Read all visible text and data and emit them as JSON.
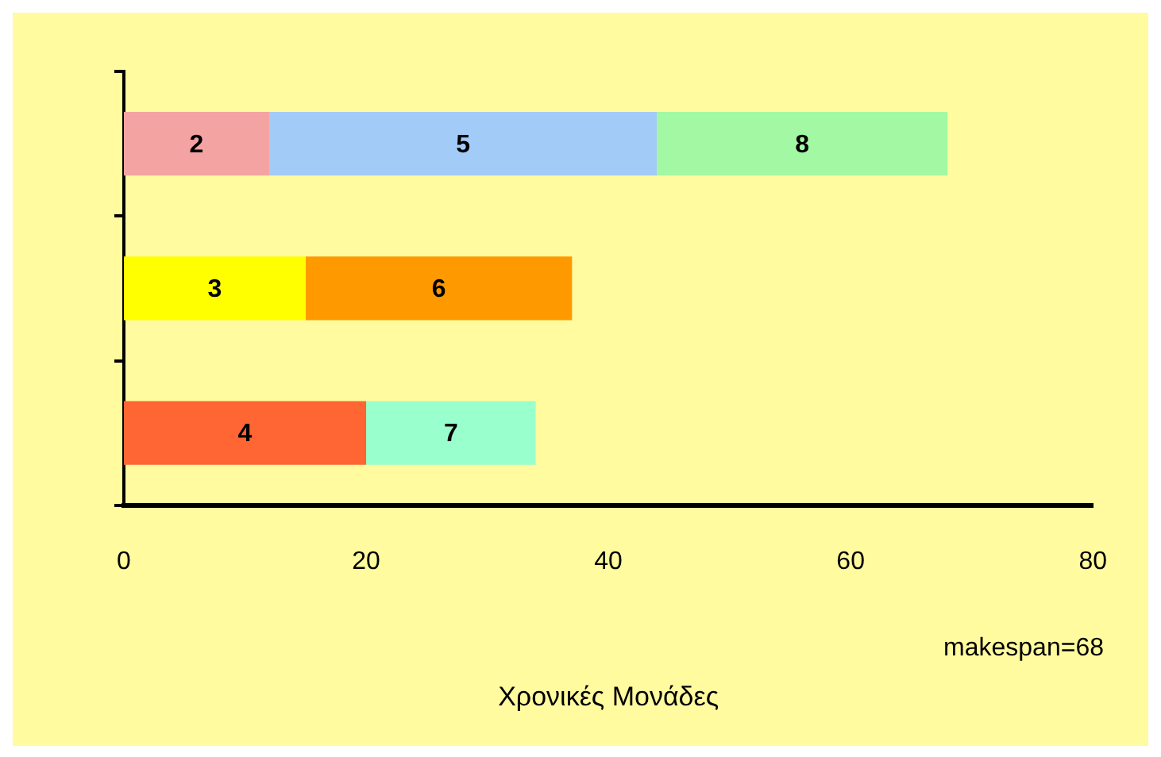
{
  "chart_data": {
    "type": "bar",
    "orientation": "horizontal",
    "stacked": true,
    "categories": [
      null,
      null,
      null
    ],
    "series": [
      {
        "name": "2",
        "color": "#f4a3a3",
        "values": [
          12,
          null,
          null
        ]
      },
      {
        "name": "3",
        "color": "#ffff00",
        "values": [
          null,
          15,
          null
        ]
      },
      {
        "name": "4",
        "color": "#ff6633",
        "values": [
          null,
          null,
          20
        ]
      },
      {
        "name": "5",
        "color": "#a3cbf8",
        "values": [
          32,
          null,
          null
        ]
      },
      {
        "name": "6",
        "color": "#ff9900",
        "values": [
          null,
          22,
          null
        ]
      },
      {
        "name": "7",
        "color": "#99ffcc",
        "values": [
          null,
          null,
          14
        ]
      },
      {
        "name": "8",
        "color": "#a3f8a3",
        "values": [
          24,
          null,
          null
        ]
      }
    ],
    "xlim": [
      0,
      80
    ],
    "xticks": [
      0,
      20,
      40,
      60,
      80
    ],
    "xlabel": "Χρονικές Μονάδες",
    "annotations": [
      "makespan=68"
    ],
    "grid": false,
    "legend": false,
    "tick_labels": "x"
  }
}
